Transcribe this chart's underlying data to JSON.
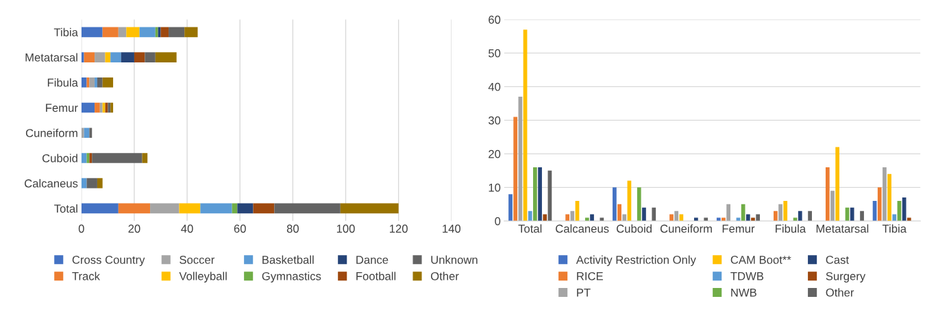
{
  "chart_data": [
    {
      "type": "bar",
      "orientation": "horizontal",
      "stacked": true,
      "categories": [
        "Tibia",
        "Metatarsal",
        "Fibula",
        "Femur",
        "Cuneiform",
        "Cuboid",
        "Calcaneus",
        "Total"
      ],
      "xlim": [
        0,
        140
      ],
      "xticks": [
        0,
        20,
        40,
        60,
        80,
        100,
        120,
        140
      ],
      "grid": "x",
      "legend": "bottom",
      "series": [
        {
          "name": "Cross Country",
          "color": "#4472c4",
          "values": [
            8,
            1,
            2,
            5,
            0,
            0,
            0,
            14
          ]
        },
        {
          "name": "Track",
          "color": "#ed7d31",
          "values": [
            6,
            4,
            1,
            2,
            0,
            0,
            0,
            12
          ]
        },
        {
          "name": "Soccer",
          "color": "#a5a5a5",
          "values": [
            3,
            4,
            2,
            1,
            1,
            0,
            0,
            11
          ]
        },
        {
          "name": "Volleyball",
          "color": "#ffc000",
          "values": [
            5,
            2,
            0,
            1,
            0,
            0,
            0,
            8
          ]
        },
        {
          "name": "Basketball",
          "color": "#5b9bd5",
          "values": [
            6,
            4,
            1,
            0,
            2,
            2,
            2,
            12
          ]
        },
        {
          "name": "Gymnastics",
          "color": "#70ad47",
          "values": [
            1,
            0,
            0,
            0,
            0,
            1,
            0,
            2
          ]
        },
        {
          "name": "Dance",
          "color": "#264478",
          "values": [
            1,
            5,
            0,
            0,
            0,
            0,
            0,
            6
          ]
        },
        {
          "name": "Football",
          "color": "#9e480e",
          "values": [
            3,
            4,
            0,
            1,
            0,
            1,
            0,
            8
          ]
        },
        {
          "name": "Unknown",
          "color": "#636363",
          "values": [
            6,
            4,
            2,
            1,
            1,
            19,
            4,
            25
          ]
        },
        {
          "name": "Other",
          "color": "#997300",
          "values": [
            5,
            8,
            4,
            1,
            0,
            2,
            2,
            22
          ]
        }
      ]
    },
    {
      "type": "bar",
      "categories": [
        "Total",
        "Calcaneus",
        "Cuboid",
        "Cuneiform",
        "Femur",
        "Fibula",
        "Metatarsal",
        "Tibia"
      ],
      "ylim": [
        0,
        60
      ],
      "yticks": [
        0,
        10,
        20,
        30,
        40,
        50,
        60
      ],
      "grid": "y",
      "legend": "bottom",
      "series": [
        {
          "name": "Activity Restriction Only",
          "color": "#4472c4",
          "values": [
            8,
            0,
            10,
            0,
            1,
            0,
            0,
            6
          ]
        },
        {
          "name": "RICE",
          "color": "#ed7d31",
          "values": [
            31,
            2,
            5,
            2,
            1,
            3,
            16,
            10
          ]
        },
        {
          "name": "PT",
          "color": "#a5a5a5",
          "values": [
            37,
            3,
            2,
            3,
            5,
            5,
            9,
            16
          ]
        },
        {
          "name": "CAM Boot**",
          "color": "#ffc000",
          "values": [
            57,
            6,
            12,
            2,
            0,
            6,
            22,
            14
          ]
        },
        {
          "name": "TDWB",
          "color": "#5b9bd5",
          "values": [
            3,
            0,
            0,
            0,
            1,
            0,
            0,
            2
          ]
        },
        {
          "name": "NWB",
          "color": "#70ad47",
          "values": [
            16,
            1,
            10,
            0,
            5,
            1,
            4,
            6
          ]
        },
        {
          "name": "Cast",
          "color": "#264478",
          "values": [
            16,
            2,
            4,
            1,
            2,
            3,
            4,
            7
          ]
        },
        {
          "name": "Surgery",
          "color": "#9e480e",
          "values": [
            2,
            0,
            0,
            0,
            1,
            0,
            0,
            1
          ]
        },
        {
          "name": "Other",
          "color": "#636363",
          "values": [
            15,
            1,
            4,
            1,
            2,
            3,
            3,
            null
          ]
        }
      ]
    }
  ]
}
